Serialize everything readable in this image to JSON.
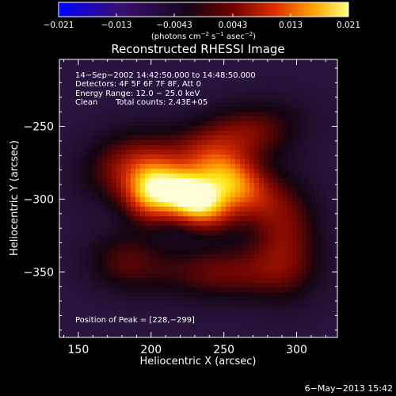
{
  "colorbar": {
    "ticks": [
      "−0.021",
      "−0.013",
      "−0.0043",
      "0.0043",
      "0.013",
      "0.021"
    ],
    "min": -0.021,
    "max": 0.021,
    "units_base": "(photons cm",
    "units_exp1": "−2",
    "units_mid": " s",
    "units_exp2": "−1",
    "units_mid2": " asec",
    "units_exp3": "−2",
    "units_end": ")"
  },
  "info": {
    "line1": "14−Sep−2002 14:42:50.000 to 14:48:50.000",
    "line2": "Detectors: 4F 5F 6F 7F 8F, Att 0",
    "line3": "Energy Range: 12.0 − 25.0 keV",
    "line4a": "Clean",
    "line4b": "Total counts: 2.43E+05",
    "peak": "Position of Peak = [228,−299]"
  },
  "footer": {
    "date": "6−May−2013 15:42"
  },
  "chart_data": {
    "type": "heatmap",
    "title": "Reconstructed RHESSI Image",
    "xlabel": "Heliocentric X (arcsec)",
    "ylabel": "Heliocentric Y (arcsec)",
    "xlim": [
      137,
      328
    ],
    "ylim": [
      -395,
      -204
    ],
    "xticks": [
      150,
      200,
      250,
      300
    ],
    "yticks": [
      -250,
      -300,
      -350
    ],
    "ytick_labels": [
      "−250",
      "−300",
      "−350"
    ],
    "peak": {
      "x": 228,
      "y": -299
    },
    "colorscale": [
      "#0000ff",
      "#3a0a5e",
      "#1a0418",
      "#500000",
      "#c02000",
      "#ff8800",
      "#ffee00",
      "#ffffff"
    ],
    "sources": [
      {
        "x": 228,
        "y": -299,
        "sx": 17,
        "sy": 11,
        "amp": 1.0,
        "rot": -25
      },
      {
        "x": 255,
        "y": -288,
        "sx": 20,
        "sy": 12,
        "amp": 0.62,
        "rot": -30
      },
      {
        "x": 200,
        "y": -296,
        "sx": 12,
        "sy": 13,
        "amp": 0.55,
        "rot": 0
      },
      {
        "x": 188,
        "y": -278,
        "sx": 22,
        "sy": 16,
        "amp": 0.32,
        "rot": 10
      },
      {
        "x": 258,
        "y": -258,
        "sx": 28,
        "sy": 14,
        "amp": 0.3,
        "rot": 15
      },
      {
        "x": 292,
        "y": -325,
        "sx": 16,
        "sy": 26,
        "amp": 0.26,
        "rot": 0
      },
      {
        "x": 250,
        "y": -350,
        "sx": 34,
        "sy": 13,
        "amp": 0.24,
        "rot": 0
      },
      {
        "x": 182,
        "y": -342,
        "sx": 18,
        "sy": 14,
        "amp": 0.18,
        "rot": 0
      }
    ],
    "background": 0.1
  }
}
